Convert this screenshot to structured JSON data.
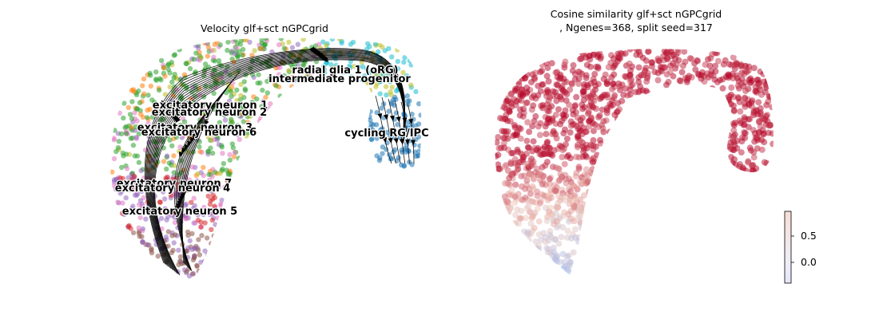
{
  "chart_data": [
    {
      "type": "scatter",
      "subtype": "velocity-streamplot-embedding",
      "title": "Velocity glf+sct nGPCgrid",
      "axes_visible": false,
      "grid": false,
      "cluster_labels": [
        {
          "text": "radial glia 1 (oRG)",
          "color": "#17becf"
        },
        {
          "text": "intermediate progenitor",
          "color": "#bcbd22"
        },
        {
          "text": "excitatory neuron 1",
          "color": "#ff7f0e"
        },
        {
          "text": "excitatory neuron 2",
          "color": "#2ca02c"
        },
        {
          "text": "excitatory neuron 3",
          "color": "#e377c2"
        },
        {
          "text": "excitatory neuron 6",
          "color": "#8c564b"
        },
        {
          "text": "cycling RG/IPC",
          "color": "#1f77b4"
        },
        {
          "text": "excitatory neuron 7",
          "color": "#7f7f7f"
        },
        {
          "text": "excitatory neuron 4",
          "color": "#d62728"
        },
        {
          "text": "excitatory neuron 5",
          "color": "#9467bd"
        }
      ],
      "stream_color": "#000000"
    },
    {
      "type": "scatter",
      "subtype": "embedding-colored-by-value",
      "title": "Cosine similarity glf+sct nGPCgrid",
      "subtitle": ", Ngenes=368, split seed=317",
      "axes_visible": false,
      "grid": false,
      "colormap": "coolwarm",
      "colorbar": {
        "ticks": [
          "0.5",
          "0.0"
        ],
        "range": [
          -0.4,
          0.95
        ],
        "low_color": "#3b4cc0",
        "high_color": "#b40426"
      }
    }
  ]
}
